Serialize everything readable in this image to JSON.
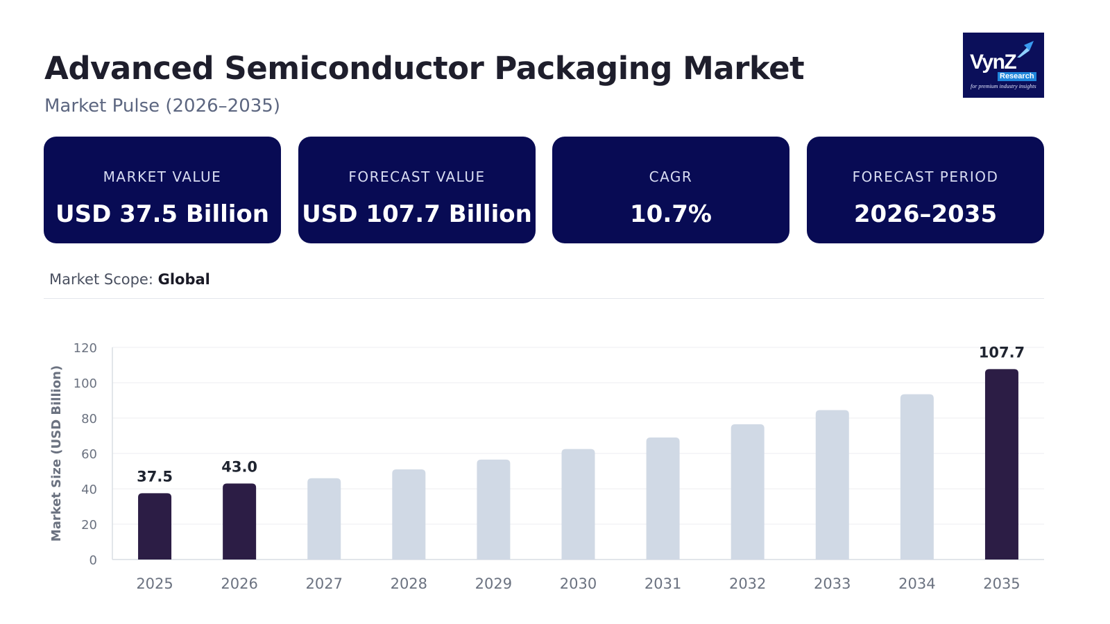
{
  "header": {
    "title": "Advanced Semiconductor Packaging Market",
    "subtitle": "Market Pulse (2026–2035)"
  },
  "logo": {
    "word": "VynZ",
    "badge": "Research",
    "tagline": "for premium industry insights",
    "icon": "arrow-up-right-icon"
  },
  "cards": [
    {
      "label": "MARKET VALUE",
      "value": "USD 37.5 Billion"
    },
    {
      "label": "FORECAST VALUE",
      "value": "USD 107.7 Billion"
    },
    {
      "label": "CAGR",
      "value": "10.7%"
    },
    {
      "label": "FORECAST PERIOD",
      "value": "2026–2035"
    }
  ],
  "scope": {
    "label": "Market Scope:",
    "value": "Global"
  },
  "colors": {
    "card_background": "#080b54",
    "highlight_bar": "#2c1d45",
    "muted_bar": "#d0d9e5",
    "logo_background": "#0b0f5a"
  },
  "chart_data": {
    "type": "bar",
    "categories": [
      "2025",
      "2026",
      "2027",
      "2028",
      "2029",
      "2030",
      "2031",
      "2032",
      "2033",
      "2034",
      "2035"
    ],
    "values": [
      37.5,
      43.0,
      46.0,
      51.0,
      56.5,
      62.5,
      69.0,
      76.5,
      84.5,
      93.5,
      107.7
    ],
    "highlighted": [
      true,
      true,
      false,
      false,
      false,
      false,
      false,
      false,
      false,
      false,
      true
    ],
    "data_labels": [
      "37.5",
      "43.0",
      "",
      "",
      "",
      "",
      "",
      "",
      "",
      "",
      "107.7"
    ],
    "title": "",
    "xlabel": "",
    "ylabel": "Market Size (USD Billion)",
    "ylim": [
      0,
      120
    ],
    "yticks": [
      0,
      20,
      40,
      60,
      80,
      100,
      120
    ],
    "grid": true,
    "legend": "none"
  }
}
